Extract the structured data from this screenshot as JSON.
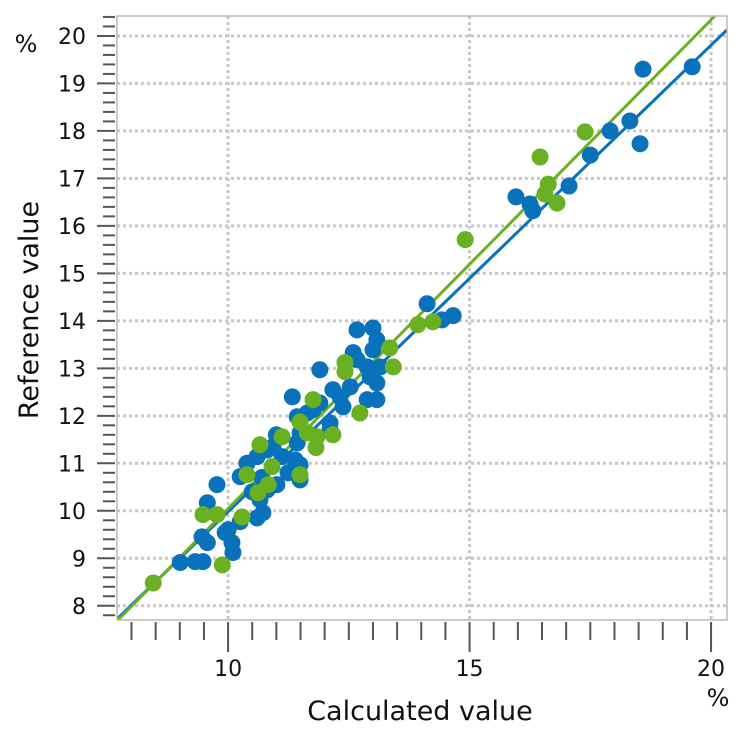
{
  "chart_data": {
    "type": "scatter",
    "title": "",
    "xlabel": "Calculated value",
    "ylabel": "Reference value",
    "x_unit": "%",
    "y_unit": "%",
    "xlim": [
      7.7,
      20.33
    ],
    "ylim": [
      7.7,
      20.42
    ],
    "x_ticks": [
      10,
      15,
      20
    ],
    "y_ticks": [
      8,
      9,
      10,
      11,
      12,
      13,
      14,
      15,
      16,
      17,
      18,
      19,
      20
    ],
    "x_minor_step": 0.5,
    "y_minor_step": 0.2,
    "grid": true,
    "legend": "none",
    "colors": {
      "blue": "#0a72ba",
      "green": "#6ab023",
      "grid": "#c8c8c8"
    },
    "series": [
      {
        "color": "#0a72ba",
        "fit_line": [
          [
            7.7,
            7.72
          ],
          [
            20.33,
            20.13
          ]
        ],
        "points": [
          [
            9.01,
            8.91
          ],
          [
            9.32,
            8.93
          ],
          [
            9.48,
            8.93
          ],
          [
            9.57,
            10.17
          ],
          [
            9.46,
            9.45
          ],
          [
            9.57,
            9.33
          ],
          [
            9.77,
            10.55
          ],
          [
            9.94,
            9.54
          ],
          [
            10.08,
            9.33
          ],
          [
            10.1,
            9.12
          ],
          [
            10.0,
            9.6
          ],
          [
            10.25,
            9.77
          ],
          [
            10.6,
            9.85
          ],
          [
            10.72,
            9.96
          ],
          [
            10.66,
            10.23
          ],
          [
            10.81,
            10.44
          ],
          [
            11.01,
            10.55
          ],
          [
            10.25,
            10.72
          ],
          [
            10.39,
            11.0
          ],
          [
            10.6,
            11.14
          ],
          [
            10.81,
            11.28
          ],
          [
            10.93,
            11.35
          ],
          [
            11.12,
            11.14
          ],
          [
            11.39,
            11.07
          ],
          [
            11.49,
            10.97
          ],
          [
            11.43,
            11.43
          ],
          [
            11.49,
            11.64
          ],
          [
            11.43,
            11.98
          ],
          [
            11.33,
            12.4
          ],
          [
            11.64,
            12.06
          ],
          [
            11.76,
            12.13
          ],
          [
            11.9,
            12.27
          ],
          [
            12.11,
            11.85
          ],
          [
            12.11,
            11.71
          ],
          [
            12.17,
            12.55
          ],
          [
            12.32,
            12.4
          ],
          [
            12.38,
            12.19
          ],
          [
            12.53,
            12.61
          ],
          [
            11.9,
            12.97
          ],
          [
            12.67,
            13.18
          ],
          [
            12.88,
            13.03
          ],
          [
            12.94,
            12.82
          ],
          [
            13.08,
            12.69
          ],
          [
            12.88,
            12.34
          ],
          [
            13.08,
            12.34
          ],
          [
            13.0,
            13.39
          ],
          [
            13.08,
            13.6
          ],
          [
            12.67,
            13.81
          ],
          [
            13.0,
            13.85
          ],
          [
            13.15,
            13.03
          ],
          [
            12.59,
            13.33
          ],
          [
            11.24,
            10.8
          ],
          [
            11.49,
            10.65
          ],
          [
            10.5,
            10.4
          ],
          [
            10.7,
            10.7
          ],
          [
            11.0,
            11.6
          ],
          [
            14.12,
            14.36
          ],
          [
            14.66,
            14.11
          ],
          [
            14.43,
            14.02
          ],
          [
            15.96,
            16.61
          ],
          [
            16.25,
            16.46
          ],
          [
            16.31,
            16.32
          ],
          [
            17.06,
            16.84
          ],
          [
            17.5,
            17.49
          ],
          [
            17.91,
            18.0
          ],
          [
            18.32,
            18.21
          ],
          [
            18.53,
            17.73
          ],
          [
            18.59,
            19.3
          ],
          [
            19.61,
            19.35
          ]
        ]
      },
      {
        "color": "#6ab023",
        "fit_line": [
          [
            7.72,
            7.7
          ],
          [
            20.08,
            20.42
          ]
        ],
        "points": [
          [
            8.45,
            8.48
          ],
          [
            9.48,
            9.92
          ],
          [
            9.77,
            9.92
          ],
          [
            10.29,
            9.87
          ],
          [
            9.88,
            8.86
          ],
          [
            10.39,
            10.76
          ],
          [
            10.66,
            11.39
          ],
          [
            10.91,
            10.93
          ],
          [
            10.83,
            10.55
          ],
          [
            10.62,
            10.38
          ],
          [
            11.12,
            11.56
          ],
          [
            11.49,
            10.76
          ],
          [
            11.49,
            11.87
          ],
          [
            11.76,
            12.34
          ],
          [
            11.64,
            11.64
          ],
          [
            11.84,
            11.56
          ],
          [
            11.82,
            11.33
          ],
          [
            12.17,
            11.6
          ],
          [
            12.73,
            12.06
          ],
          [
            12.42,
            13.12
          ],
          [
            12.42,
            12.93
          ],
          [
            13.35,
            13.43
          ],
          [
            13.42,
            13.03
          ],
          [
            13.93,
            13.92
          ],
          [
            14.24,
            13.98
          ],
          [
            14.91,
            15.71
          ],
          [
            16.46,
            17.45
          ],
          [
            16.63,
            16.88
          ],
          [
            16.56,
            16.67
          ],
          [
            16.81,
            16.48
          ],
          [
            17.39,
            17.98
          ]
        ]
      }
    ]
  }
}
